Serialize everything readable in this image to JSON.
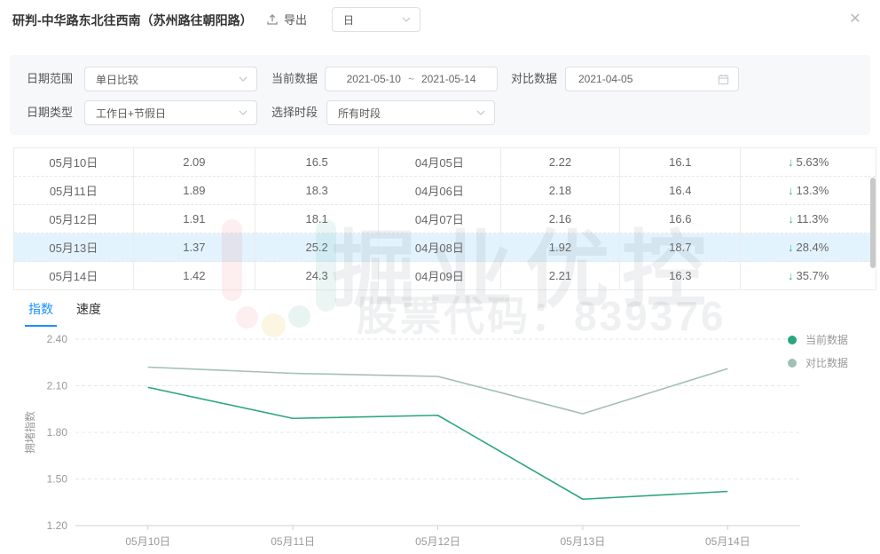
{
  "header": {
    "title": "研判-中华路东北往西南（苏州路往朝阳路）",
    "export_label": "导出",
    "interval_value": "日"
  },
  "filters": {
    "date_range": {
      "label": "日期范围",
      "value": "单日比较"
    },
    "current_data": {
      "label": "当前数据",
      "start": "2021-05-10",
      "separator": "~",
      "end": "2021-05-14"
    },
    "compare_data": {
      "label": "对比数据",
      "value": "2021-04-05"
    },
    "date_type": {
      "label": "日期类型",
      "value": "工作日+节假日"
    },
    "time_period": {
      "label": "选择时段",
      "value": "所有时段"
    }
  },
  "table": {
    "trend_arrow": "↓",
    "rows": [
      {
        "date": "05月10日",
        "index": "2.09",
        "speed": "16.5",
        "cmp_date": "04月05日",
        "cmp_index": "2.22",
        "cmp_speed": "16.1",
        "change": "5.63%",
        "trend": "down",
        "highlighted": false
      },
      {
        "date": "05月11日",
        "index": "1.89",
        "speed": "18.3",
        "cmp_date": "04月06日",
        "cmp_index": "2.18",
        "cmp_speed": "16.4",
        "change": "13.3%",
        "trend": "down",
        "highlighted": false
      },
      {
        "date": "05月12日",
        "index": "1.91",
        "speed": "18.1",
        "cmp_date": "04月07日",
        "cmp_index": "2.16",
        "cmp_speed": "16.6",
        "change": "11.3%",
        "trend": "down",
        "highlighted": false
      },
      {
        "date": "05月13日",
        "index": "1.37",
        "speed": "25.2",
        "cmp_date": "04月08日",
        "cmp_index": "1.92",
        "cmp_speed": "18.7",
        "change": "28.4%",
        "trend": "down",
        "highlighted": true
      },
      {
        "date": "05月14日",
        "index": "1.42",
        "speed": "24.3",
        "cmp_date": "04月09日",
        "cmp_index": "2.21",
        "cmp_speed": "16.3",
        "change": "35.7%",
        "trend": "down",
        "highlighted": false
      }
    ]
  },
  "tabs": [
    {
      "label": "指数",
      "active": true
    },
    {
      "label": "速度",
      "active": false
    }
  ],
  "watermark": {
    "brand": "掘业优控",
    "subtitle": "股票代码：839376"
  },
  "chart_data": {
    "type": "line",
    "title": "",
    "xlabel": "",
    "ylabel": "拥堵指数",
    "categories": [
      "05月10日",
      "05月11日",
      "05月12日",
      "05月13日",
      "05月14日"
    ],
    "series": [
      {
        "name": "当前数据",
        "values": [
          2.09,
          1.89,
          1.91,
          1.37,
          1.42
        ],
        "color": "#2aa67f"
      },
      {
        "name": "对比数据",
        "values": [
          2.22,
          2.18,
          2.16,
          1.92,
          2.21
        ],
        "color": "#a3bfb5"
      }
    ],
    "ylim": [
      1.2,
      2.4
    ],
    "yticks": [
      1.2,
      1.5,
      1.8,
      2.1,
      2.4
    ],
    "grid": "horizontal-dashed",
    "legend_position": "top-right"
  },
  "colors": {
    "accent_blue": "#1890ff",
    "current_series": "#2aa67f",
    "compare_series": "#a3bfb5",
    "trend_arrow": "#2ab3a0",
    "row_highlight": "#e2f3fd"
  }
}
